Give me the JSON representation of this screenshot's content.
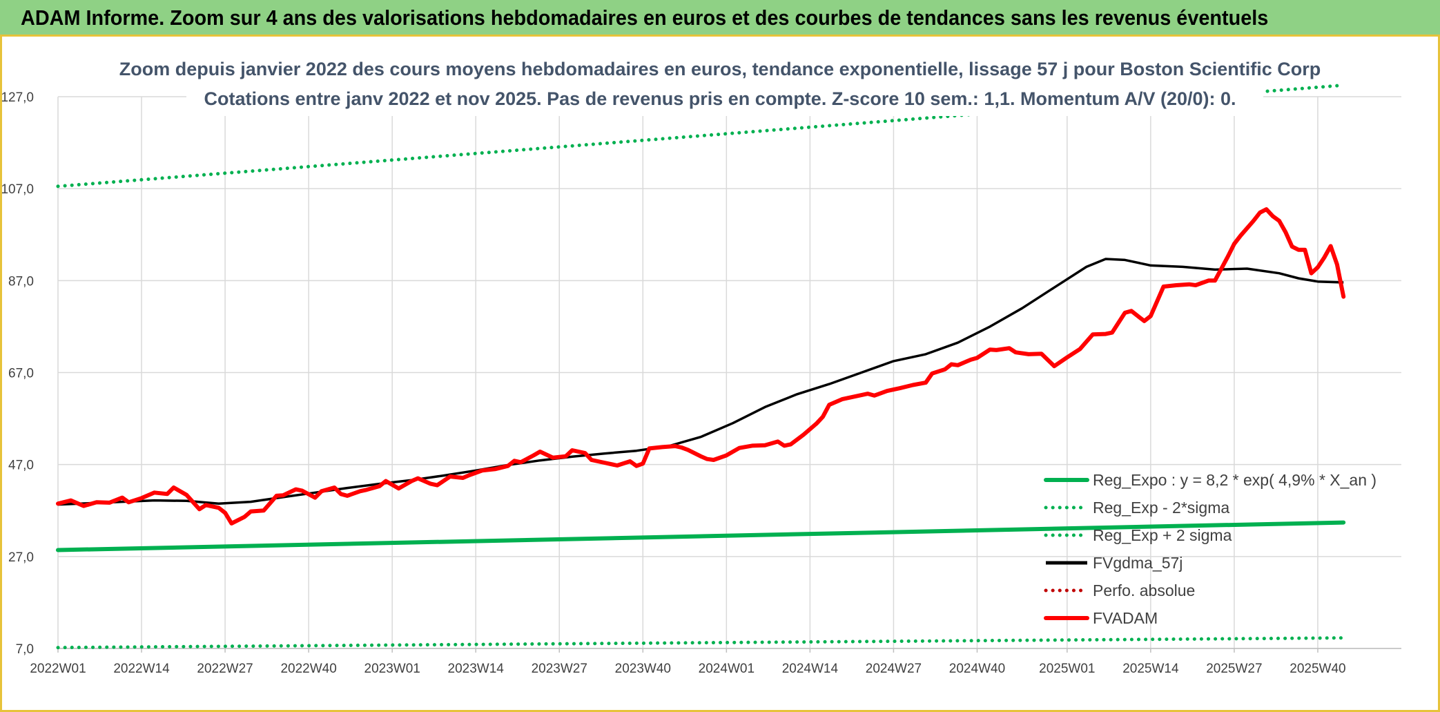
{
  "banner": {
    "title": "ADAM Informe. Zoom sur 4 ans des valorisations hebdomadaires en euros et des courbes de tendances sans les revenus éventuels"
  },
  "colors": {
    "banner_bg": "#8fd185",
    "accent_border": "#e7c33a",
    "green": "#00b050",
    "red": "#ff0000",
    "black": "#000000",
    "dark_red": "#c00000"
  },
  "chart_data": {
    "type": "line",
    "title_lines": [
      "Zoom depuis janvier 2022 des cours moyens hebdomadaires en euros, tendance exponentielle, lissage 57 j pour Boston Scientific Corp",
      "Cotations entre janv 2022 et nov 2025. Pas de revenus pris en compte. Z-score 10 sem.: 1,1. Momentum A/V (20/0): 0."
    ],
    "xlabel": "",
    "ylabel": "",
    "ylim": [
      7,
      127
    ],
    "yticks": [
      "7,0",
      "27,0",
      "47,0",
      "67,0",
      "87,0",
      "107,0",
      "127,0"
    ],
    "ytick_values": [
      7,
      27,
      47,
      67,
      87,
      107,
      127
    ],
    "xticks": [
      "2022W01",
      "2022W14",
      "2022W27",
      "2022W40",
      "2023W01",
      "2023W14",
      "2023W27",
      "2023W40",
      "2024W01",
      "2024W14",
      "2024W27",
      "2024W40",
      "2025W01",
      "2025W14",
      "2025W27",
      "2025W40"
    ],
    "xtick_weeks": [
      0,
      13,
      26,
      39,
      52,
      65,
      78,
      91,
      104,
      117,
      130,
      143,
      157,
      170,
      183,
      196
    ],
    "n_weeks": 201,
    "grid": true,
    "legend_position": "bottom-right",
    "series": [
      {
        "name": "Reg_Expo : y = 8,2 * exp( 4,9% *  X_an )",
        "style": "solid-thick",
        "color": "#00b050",
        "points": [
          [
            0,
            28.4
          ],
          [
            200,
            34.4
          ]
        ]
      },
      {
        "name": "Reg_Exp - 2*sigma",
        "style": "dotted",
        "color": "#00b050",
        "points": [
          [
            0,
            7.2
          ],
          [
            200,
            9.3
          ]
        ]
      },
      {
        "name": "Reg_Exp + 2 sigma",
        "style": "dotted",
        "color": "#00b050",
        "points": [
          [
            0,
            107.5
          ],
          [
            200,
            129.5
          ]
        ]
      },
      {
        "name": "FVgdma_57j",
        "style": "solid",
        "color": "#000000",
        "points": [
          [
            0,
            38.3
          ],
          [
            5,
            38.6
          ],
          [
            10,
            38.9
          ],
          [
            15,
            39.2
          ],
          [
            20,
            39.1
          ],
          [
            25,
            38.5
          ],
          [
            30,
            38.9
          ],
          [
            35,
            39.9
          ],
          [
            40,
            40.9
          ],
          [
            45,
            41.9
          ],
          [
            50,
            42.8
          ],
          [
            55,
            43.6
          ],
          [
            60,
            44.6
          ],
          [
            65,
            45.7
          ],
          [
            70,
            46.9
          ],
          [
            75,
            47.9
          ],
          [
            80,
            48.7
          ],
          [
            85,
            49.4
          ],
          [
            90,
            50.0
          ],
          [
            95,
            51.0
          ],
          [
            100,
            53.0
          ],
          [
            105,
            56.0
          ],
          [
            110,
            59.5
          ],
          [
            115,
            62.3
          ],
          [
            120,
            64.5
          ],
          [
            125,
            67.0
          ],
          [
            130,
            69.5
          ],
          [
            135,
            71.0
          ],
          [
            140,
            73.5
          ],
          [
            145,
            77.0
          ],
          [
            150,
            81.0
          ],
          [
            155,
            85.5
          ],
          [
            160,
            90.0
          ],
          [
            163,
            91.7
          ],
          [
            166,
            91.5
          ],
          [
            170,
            90.3
          ],
          [
            175,
            90.0
          ],
          [
            180,
            89.4
          ],
          [
            185,
            89.6
          ],
          [
            190,
            88.6
          ],
          [
            193,
            87.5
          ],
          [
            196,
            86.8
          ],
          [
            200,
            86.6
          ]
        ]
      },
      {
        "name": "Perfo. absolue",
        "style": "dotted",
        "color": "#c00000",
        "points": []
      },
      {
        "name": "FVADAM",
        "style": "solid-thick",
        "color": "#ff0000",
        "points": [
          [
            0,
            38.5
          ],
          [
            2,
            39.2
          ],
          [
            4,
            38.0
          ],
          [
            6,
            38.8
          ],
          [
            8,
            38.7
          ],
          [
            10,
            39.8
          ],
          [
            11,
            38.8
          ],
          [
            13,
            39.7
          ],
          [
            15,
            40.9
          ],
          [
            17,
            40.6
          ],
          [
            18,
            42.0
          ],
          [
            20,
            40.4
          ],
          [
            22,
            37.3
          ],
          [
            23,
            38.2
          ],
          [
            25,
            37.6
          ],
          [
            26,
            36.5
          ],
          [
            27,
            34.2
          ],
          [
            29,
            35.6
          ],
          [
            30,
            36.8
          ],
          [
            32,
            37.0
          ],
          [
            34,
            40.2
          ],
          [
            35,
            40.3
          ],
          [
            37,
            41.6
          ],
          [
            38,
            41.3
          ],
          [
            40,
            39.8
          ],
          [
            41,
            41.2
          ],
          [
            43,
            42.0
          ],
          [
            44,
            40.6
          ],
          [
            45,
            40.2
          ],
          [
            47,
            41.2
          ],
          [
            48,
            41.5
          ],
          [
            50,
            42.3
          ],
          [
            51,
            43.4
          ],
          [
            53,
            41.8
          ],
          [
            55,
            43.4
          ],
          [
            56,
            44.0
          ],
          [
            58,
            42.8
          ],
          [
            59,
            42.5
          ],
          [
            61,
            44.4
          ],
          [
            63,
            44.1
          ],
          [
            64,
            44.7
          ],
          [
            66,
            45.7
          ],
          [
            68,
            46.0
          ],
          [
            70,
            46.7
          ],
          [
            71,
            47.8
          ],
          [
            72,
            47.5
          ],
          [
            74,
            49.0
          ],
          [
            75,
            49.8
          ],
          [
            77,
            48.5
          ],
          [
            79,
            48.8
          ],
          [
            80,
            50.1
          ],
          [
            82,
            49.5
          ],
          [
            83,
            48.0
          ],
          [
            85,
            47.4
          ],
          [
            87,
            46.8
          ],
          [
            89,
            47.7
          ],
          [
            90,
            46.7
          ],
          [
            91,
            47.2
          ],
          [
            92,
            50.5
          ],
          [
            94,
            50.8
          ],
          [
            96,
            51.0
          ],
          [
            97,
            50.7
          ],
          [
            98,
            50.2
          ],
          [
            100,
            48.8
          ],
          [
            101,
            48.2
          ],
          [
            102,
            48.0
          ],
          [
            104,
            49.0
          ],
          [
            106,
            50.6
          ],
          [
            108,
            51.1
          ],
          [
            110,
            51.2
          ],
          [
            112,
            52.0
          ],
          [
            113,
            51.1
          ],
          [
            114,
            51.4
          ],
          [
            116,
            53.5
          ],
          [
            118,
            55.9
          ],
          [
            119,
            57.4
          ],
          [
            120,
            60.0
          ],
          [
            122,
            61.2
          ],
          [
            124,
            61.8
          ],
          [
            126,
            62.4
          ],
          [
            127,
            62.0
          ],
          [
            129,
            63.0
          ],
          [
            131,
            63.6
          ],
          [
            133,
            64.3
          ],
          [
            135,
            64.8
          ],
          [
            136,
            66.8
          ],
          [
            138,
            67.7
          ],
          [
            139,
            68.8
          ],
          [
            140,
            68.6
          ],
          [
            142,
            69.8
          ],
          [
            143,
            70.2
          ],
          [
            145,
            72.0
          ],
          [
            146,
            71.9
          ],
          [
            148,
            72.3
          ],
          [
            149,
            71.4
          ],
          [
            151,
            71.0
          ],
          [
            153,
            71.1
          ],
          [
            155,
            68.4
          ],
          [
            157,
            70.3
          ],
          [
            159,
            72.1
          ],
          [
            161,
            75.3
          ],
          [
            163,
            75.4
          ],
          [
            164,
            75.7
          ],
          [
            166,
            80.0
          ],
          [
            167,
            80.4
          ],
          [
            169,
            78.2
          ],
          [
            170,
            79.3
          ],
          [
            172,
            85.7
          ],
          [
            174,
            86.0
          ],
          [
            176,
            86.2
          ],
          [
            177,
            86.0
          ],
          [
            179,
            87.0
          ],
          [
            180,
            87.0
          ],
          [
            182,
            92.2
          ],
          [
            183,
            95.0
          ],
          [
            184,
            96.8
          ],
          [
            186,
            100.0
          ],
          [
            187,
            101.8
          ],
          [
            188,
            102.5
          ],
          [
            189,
            101.0
          ],
          [
            190,
            100.0
          ],
          [
            191,
            97.5
          ],
          [
            192,
            94.4
          ],
          [
            193,
            93.7
          ],
          [
            194,
            93.7
          ],
          [
            195,
            88.6
          ],
          [
            196,
            89.9
          ],
          [
            197,
            92.0
          ],
          [
            198,
            94.5
          ],
          [
            199,
            90.5
          ],
          [
            200,
            83.5
          ]
        ]
      }
    ]
  }
}
